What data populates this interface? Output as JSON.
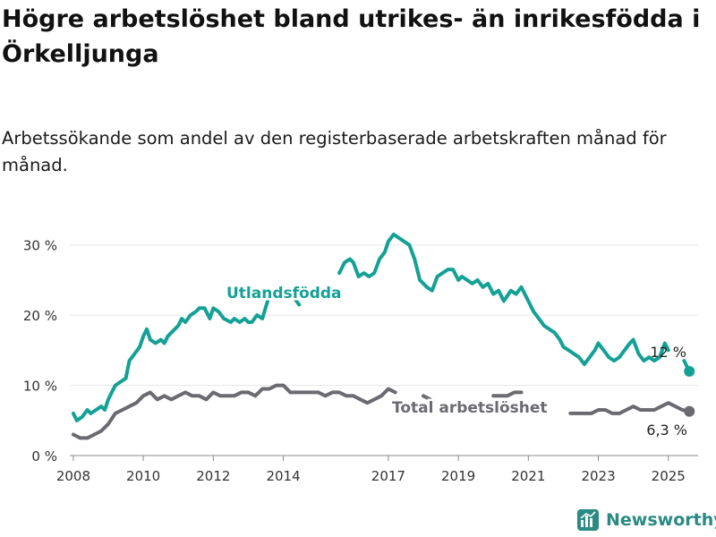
{
  "header": {
    "title": "Högre arbetslöshet bland utrikes- än inrikesfödda i Örkelljunga",
    "subtitle": "Arbetssökande som andel av den registerbaserade arbetskraften månad för månad."
  },
  "brand": {
    "name": "Newsworthy",
    "icon": "bar-chart-logo-icon"
  },
  "colors": {
    "utlandsfodda": "#14a195",
    "total": "#6b6a70",
    "axis": "#888888",
    "grid": "#e6e6e6"
  },
  "chart_data": {
    "type": "line",
    "y_ticks": [
      "0 %",
      "10 %",
      "20 %",
      "30 %"
    ],
    "y_tick_values": [
      0,
      10,
      20,
      30
    ],
    "x_ticks": [
      "2008",
      "2010",
      "2012",
      "2014",
      "2017",
      "2019",
      "2021",
      "2023",
      "2025"
    ],
    "x_tick_values": [
      2008,
      2010,
      2012,
      2014,
      2017,
      2019,
      2021,
      2023,
      2025
    ],
    "xlim": [
      2007.9,
      2025.85
    ],
    "ylim": [
      0,
      32
    ],
    "grid": "horizontal",
    "series": [
      {
        "name": "Utlandsfödda",
        "end_label": "12 %",
        "x": [
          2008.0,
          2008.1,
          2008.25,
          2008.4,
          2008.5,
          2008.65,
          2008.8,
          2008.9,
          2009.0,
          2009.1,
          2009.2,
          2009.35,
          2009.5,
          2009.6,
          2009.75,
          2009.9,
          2010.0,
          2010.1,
          2010.2,
          2010.35,
          2010.5,
          2010.6,
          2010.7,
          2010.8,
          2011.0,
          2011.1,
          2011.2,
          2011.35,
          2011.5,
          2011.6,
          2011.75,
          2011.9,
          2012.0,
          2012.15,
          2012.3,
          2012.5,
          2012.6,
          2012.75,
          2012.9,
          2013.0,
          2013.1,
          2013.25,
          2013.4,
          2013.55,
          2013.7,
          2013.85,
          2014.0,
          2014.15,
          2014.3,
          2014.45,
          2014.6,
          2014.75,
          2014.9,
          2015.0,
          2015.15,
          2015.3,
          2015.45,
          2015.6,
          2015.75,
          2015.9,
          2016.0,
          2016.15,
          2016.3,
          2016.45,
          2016.6,
          2016.75,
          2016.9,
          2017.0,
          2017.15,
          2017.3,
          2017.45,
          2017.6,
          2017.75,
          2017.9,
          2018.0,
          2018.1,
          2018.25,
          2018.4,
          2018.55,
          2018.7,
          2018.85,
          2019.0,
          2019.1,
          2019.25,
          2019.4,
          2019.55,
          2019.7,
          2019.85,
          2020.0,
          2020.15,
          2020.3,
          2020.5,
          2020.65,
          2020.8,
          2021.0,
          2021.15,
          2021.3,
          2021.45,
          2021.6,
          2021.75,
          2021.9,
          2022.0,
          2022.15,
          2022.3,
          2022.45,
          2022.6,
          2022.75,
          2022.9,
          2023.0,
          2023.15,
          2023.3,
          2023.45,
          2023.6,
          2023.75,
          2023.9,
          2024.0,
          2024.15,
          2024.3,
          2024.45,
          2024.6,
          2024.75,
          2024.9,
          2025.0,
          2025.15,
          2025.3,
          2025.45,
          2025.6
        ],
        "values": [
          6,
          5,
          5.5,
          6.5,
          6,
          6.5,
          7,
          6.5,
          8,
          9,
          10,
          10.5,
          11,
          13.5,
          14.5,
          15.5,
          17,
          18,
          16.5,
          16,
          16.5,
          16,
          17,
          17.5,
          18.5,
          19.5,
          19,
          20,
          20.5,
          21,
          21,
          19.5,
          21,
          20.5,
          19.5,
          19,
          19.5,
          19,
          19.5,
          19,
          19,
          20,
          19.5,
          22,
          21.5,
          22,
          22,
          23,
          22.5,
          21.5,
          21,
          21.5,
          22.5,
          22.5,
          22,
          23,
          24,
          26,
          27.5,
          28,
          27.5,
          25.5,
          26,
          25.5,
          26,
          28,
          29,
          30.5,
          31.5,
          31,
          30.5,
          30,
          28,
          25,
          24.5,
          24,
          23.5,
          25.5,
          26,
          26.5,
          26.5,
          25,
          25.5,
          25,
          24.5,
          25,
          24,
          24.5,
          23,
          23.5,
          22,
          23.5,
          23,
          24,
          22,
          20.5,
          19.5,
          18.5,
          18,
          17.5,
          16.5,
          15.5,
          15,
          14.5,
          14,
          13,
          14,
          15,
          16,
          15,
          14,
          13.5,
          14,
          15,
          16,
          16.5,
          14.5,
          13.5,
          14,
          13.5,
          14,
          16,
          15,
          13.5,
          13.5,
          13.5,
          12
        ],
        "gaps": [
          [
            2013.65,
            2014.2
          ],
          [
            2014.45,
            2015.6
          ],
          [
            2025.1,
            2025.4
          ]
        ],
        "color": "#14a195"
      },
      {
        "name": "Total arbetslöshet",
        "end_label": "6,3 %",
        "x": [
          2008.0,
          2008.2,
          2008.4,
          2008.6,
          2008.8,
          2009.0,
          2009.2,
          2009.4,
          2009.6,
          2009.8,
          2010.0,
          2010.2,
          2010.4,
          2010.6,
          2010.8,
          2011.0,
          2011.2,
          2011.4,
          2011.6,
          2011.8,
          2012.0,
          2012.2,
          2012.4,
          2012.6,
          2012.8,
          2013.0,
          2013.2,
          2013.4,
          2013.6,
          2013.8,
          2014.0,
          2014.2,
          2014.4,
          2014.6,
          2014.8,
          2015.0,
          2015.2,
          2015.4,
          2015.6,
          2015.8,
          2016.0,
          2016.2,
          2016.4,
          2016.6,
          2016.8,
          2017.0,
          2017.2,
          2017.4,
          2017.6,
          2017.8,
          2018.0,
          2018.2,
          2018.4,
          2018.6,
          2018.8,
          2019.0,
          2019.2,
          2019.4,
          2019.6,
          2019.8,
          2020.0,
          2020.2,
          2020.4,
          2020.6,
          2020.8,
          2021.0,
          2021.2,
          2021.4,
          2021.6,
          2021.8,
          2022.0,
          2022.2,
          2022.4,
          2022.6,
          2022.8,
          2023.0,
          2023.2,
          2023.4,
          2023.6,
          2023.8,
          2024.0,
          2024.2,
          2024.4,
          2024.6,
          2024.8,
          2025.0,
          2025.2,
          2025.4,
          2025.6
        ],
        "values": [
          3,
          2.5,
          2.5,
          3,
          3.5,
          4.5,
          6,
          6.5,
          7,
          7.5,
          8.5,
          9,
          8,
          8.5,
          8,
          8.5,
          9,
          8.5,
          8.5,
          8,
          9,
          8.5,
          8.5,
          8.5,
          9,
          9,
          8.5,
          9.5,
          9.5,
          10,
          10,
          9,
          9,
          9,
          9,
          9,
          8.5,
          9,
          9,
          8.5,
          8.5,
          8,
          7.5,
          8,
          8.5,
          9.5,
          9,
          8.5,
          8.5,
          8.5,
          8.5,
          8,
          8,
          8.5,
          8.5,
          8.5,
          8.5,
          8,
          8.5,
          8.5,
          8.5,
          8.5,
          8.5,
          9,
          9,
          8.5,
          8,
          7.5,
          7,
          6.5,
          6.5,
          6,
          6,
          6,
          6,
          6.5,
          6.5,
          6,
          6,
          6.5,
          7,
          6.5,
          6.5,
          6.5,
          7,
          7.5,
          7,
          6.5,
          6.3
        ],
        "gaps": [
          [
            2017.2,
            2018.0
          ],
          [
            2018.25,
            2020.0
          ],
          [
            2020.9,
            2022.2
          ]
        ],
        "color": "#6b6a70"
      }
    ]
  }
}
